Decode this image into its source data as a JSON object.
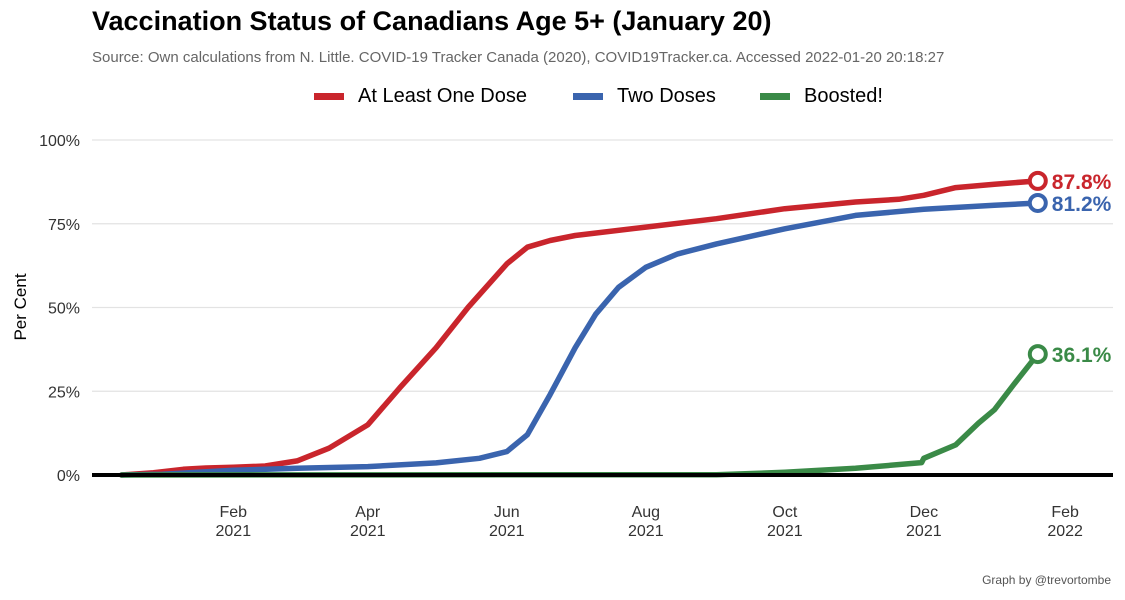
{
  "header": {
    "title": "Vaccination Status of Canadians Age 5+ (January 20)",
    "subtitle": "Source: Own calculations from N. Little. COVID-19 Tracker Canada (2020), COVID19Tracker.ca. Accessed  2022-01-20 20:18:27"
  },
  "footer": {
    "caption": "Graph by @trevortombe"
  },
  "chart_data": {
    "type": "line",
    "title": "Vaccination Status of Canadians Age 5+ (January 20)",
    "ylabel": "Per Cent",
    "xlabel": "",
    "ylim": [
      0,
      100
    ],
    "xlim": [
      "2020-12-01",
      "2022-02-22"
    ],
    "grid": true,
    "legend_position": "top",
    "y_ticks": [
      {
        "value": 0,
        "label": "0%"
      },
      {
        "value": 25,
        "label": "25%"
      },
      {
        "value": 50,
        "label": "50%"
      },
      {
        "value": 75,
        "label": "75%"
      },
      {
        "value": 100,
        "label": "100%"
      }
    ],
    "x_ticks": [
      {
        "date": "2021-02-01",
        "month": "Feb",
        "year": "2021"
      },
      {
        "date": "2021-04-01",
        "month": "Apr",
        "year": "2021"
      },
      {
        "date": "2021-06-01",
        "month": "Jun",
        "year": "2021"
      },
      {
        "date": "2021-08-01",
        "month": "Aug",
        "year": "2021"
      },
      {
        "date": "2021-10-01",
        "month": "Oct",
        "year": "2021"
      },
      {
        "date": "2021-12-01",
        "month": "Dec",
        "year": "2021"
      },
      {
        "date": "2022-02-01",
        "month": "Feb",
        "year": "2022"
      }
    ],
    "series": [
      {
        "name": "At Least One Dose",
        "color": "#C9252C",
        "end_label": "87.8%",
        "points": [
          [
            "2020-12-14",
            0
          ],
          [
            "2020-12-28",
            0.7
          ],
          [
            "2021-01-10",
            1.7
          ],
          [
            "2021-01-20",
            2.1
          ],
          [
            "2021-02-01",
            2.3
          ],
          [
            "2021-02-15",
            2.7
          ],
          [
            "2021-03-01",
            4.2
          ],
          [
            "2021-03-15",
            8
          ],
          [
            "2021-04-01",
            15
          ],
          [
            "2021-04-15",
            26
          ],
          [
            "2021-05-01",
            38
          ],
          [
            "2021-05-15",
            50
          ],
          [
            "2021-06-01",
            63
          ],
          [
            "2021-06-10",
            68
          ],
          [
            "2021-06-20",
            70
          ],
          [
            "2021-07-01",
            71.5
          ],
          [
            "2021-08-01",
            74
          ],
          [
            "2021-09-01",
            76.5
          ],
          [
            "2021-10-01",
            79.5
          ],
          [
            "2021-11-01",
            81.5
          ],
          [
            "2021-11-20",
            82.3
          ],
          [
            "2021-12-01",
            83.5
          ],
          [
            "2021-12-15",
            85.8
          ],
          [
            "2022-01-01",
            86.8
          ],
          [
            "2022-01-20",
            87.8
          ]
        ]
      },
      {
        "name": "Two Doses",
        "color": "#3A64AE",
        "end_label": "81.2%",
        "points": [
          [
            "2020-12-14",
            0
          ],
          [
            "2021-01-01",
            0.2
          ],
          [
            "2021-02-01",
            1.4
          ],
          [
            "2021-03-01",
            2.0
          ],
          [
            "2021-04-01",
            2.5
          ],
          [
            "2021-05-01",
            3.6
          ],
          [
            "2021-05-20",
            5.0
          ],
          [
            "2021-06-01",
            7.0
          ],
          [
            "2021-06-10",
            12
          ],
          [
            "2021-06-20",
            24
          ],
          [
            "2021-07-01",
            38
          ],
          [
            "2021-07-10",
            48
          ],
          [
            "2021-07-20",
            56
          ],
          [
            "2021-08-01",
            62
          ],
          [
            "2021-08-15",
            66
          ],
          [
            "2021-09-01",
            69
          ],
          [
            "2021-10-01",
            73.5
          ],
          [
            "2021-11-01",
            77.5
          ],
          [
            "2021-12-01",
            79.3
          ],
          [
            "2022-01-01",
            80.5
          ],
          [
            "2022-01-20",
            81.2
          ]
        ]
      },
      {
        "name": "Boosted!",
        "color": "#3A8A47",
        "end_label": "36.1%",
        "points": [
          [
            "2020-12-14",
            0
          ],
          [
            "2021-09-01",
            0.1
          ],
          [
            "2021-10-01",
            0.8
          ],
          [
            "2021-11-01",
            2.0
          ],
          [
            "2021-11-30",
            3.7
          ],
          [
            "2021-12-01",
            5.0
          ],
          [
            "2021-12-15",
            9.0
          ],
          [
            "2021-12-25",
            15.5
          ],
          [
            "2022-01-01",
            19.5
          ],
          [
            "2022-01-10",
            27.5
          ],
          [
            "2022-01-20",
            36.1
          ]
        ]
      }
    ]
  }
}
